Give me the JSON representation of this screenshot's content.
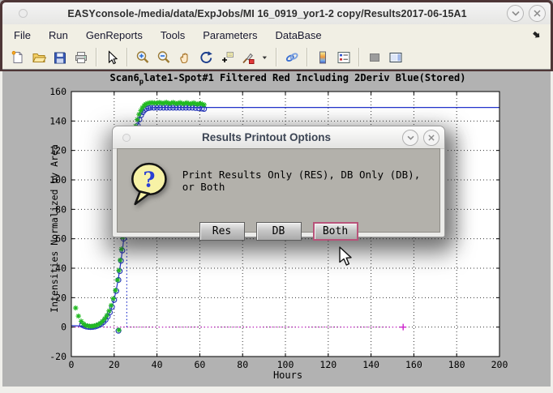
{
  "window": {
    "title": "EASYconsole-/media/data/ExpJobs/MI 16_0919_yor1-2 copy/Results2017-06-15A1",
    "minimize_glyph": "v",
    "close_glyph": "×"
  },
  "menu": {
    "items": [
      "File",
      "Run",
      "GenReports",
      "Tools",
      "Parameters",
      "DataBase"
    ]
  },
  "toolbar": {
    "groups": [
      [
        "new-document-icon",
        "open-folder-icon",
        "save-icon",
        "print-icon"
      ],
      [
        "edit-plot-arrow-icon"
      ],
      [
        "zoom-in-icon",
        "zoom-out-icon",
        "pan-hand-icon",
        "rotate-3d-icon",
        "data-cursor-icon",
        "brush-icon",
        "brush-dropdown-caret-icon"
      ],
      [
        "link-plots-icon"
      ],
      [
        "colorbar-icon",
        "legend-icon"
      ],
      [
        "hide-plot-tools-icon",
        "show-plot-tools-icon"
      ]
    ]
  },
  "dialog": {
    "title": "Results Printout Options",
    "message": "Print Results Only (RES), DB Only (DB), or Both",
    "icon": "question-bubble-icon",
    "buttons": [
      {
        "label": "Res",
        "focused": false
      },
      {
        "label": "DB",
        "focused": false
      },
      {
        "label": "Both",
        "focused": true
      }
    ],
    "focus_ring_color": "#b8537a"
  },
  "chart_data": {
    "type": "line",
    "title": "Scan6_plate1-Spot#1 Filtered Red Including 2Deriv Blue(Stored)",
    "title_parts": {
      "pre": "Scan6",
      "sub": "p",
      "post": "late1-Spot#1 Filtered Red Including 2Deriv Blue(Stored)"
    },
    "xlabel": "Hours",
    "ylabel": "Intensities Normalized by Area",
    "xlim": [
      0,
      200
    ],
    "ylim": [
      -20,
      160
    ],
    "xticks": [
      0,
      20,
      40,
      60,
      80,
      100,
      120,
      140,
      160,
      180,
      200
    ],
    "yticks": [
      -20,
      0,
      20,
      40,
      60,
      80,
      100,
      120,
      140,
      160
    ],
    "grid": true,
    "background": "#ffffff",
    "figure_color": "#b2b2b2",
    "series": [
      {
        "name": "fit-line",
        "type": "line",
        "style": "solid",
        "color": "#2233cc",
        "points": [
          [
            0,
            1
          ],
          [
            4,
            0.8
          ],
          [
            8,
            0.6
          ],
          [
            10,
            0.6
          ],
          [
            12,
            1
          ],
          [
            14,
            2.2
          ],
          [
            15,
            3.2
          ],
          [
            16,
            4.8
          ],
          [
            17,
            7
          ],
          [
            18,
            10
          ],
          [
            19,
            14
          ],
          [
            20,
            19
          ],
          [
            21,
            25.5
          ],
          [
            22,
            33.5
          ],
          [
            23,
            43
          ],
          [
            24,
            54
          ],
          [
            25,
            66
          ],
          [
            26,
            79
          ],
          [
            27,
            93
          ],
          [
            28,
            107
          ],
          [
            29,
            119
          ],
          [
            30,
            129
          ],
          [
            31,
            137
          ],
          [
            32,
            142.5
          ],
          [
            33,
            145.8
          ],
          [
            34,
            147.6
          ],
          [
            35,
            148.5
          ],
          [
            37,
            149
          ],
          [
            40,
            149.2
          ],
          [
            50,
            149.2
          ],
          [
            62,
            149.2
          ],
          [
            100,
            149.2
          ],
          [
            150,
            149.2
          ],
          [
            200,
            149.2
          ]
        ]
      },
      {
        "name": "threshold-vline",
        "type": "line",
        "style": "dotted",
        "color": "#2233cc",
        "points": [
          [
            25.9,
            0
          ],
          [
            25.9,
            62.5
          ]
        ]
      },
      {
        "name": "threshold-vline-cap",
        "type": "line",
        "style": "solid",
        "color": "#2233cc",
        "points": [
          [
            24.8,
            62.5
          ],
          [
            27,
            62.5
          ]
        ]
      },
      {
        "name": "zero-baseline",
        "type": "line",
        "style": "dotted",
        "color": "#cc22cc",
        "points": [
          [
            0,
            0
          ],
          [
            155,
            0
          ]
        ],
        "end_marker": "plus"
      },
      {
        "name": "deriv-circles",
        "type": "scatter",
        "marker": "circle",
        "color": "#2233bb",
        "points": [
          [
            5,
            1.5
          ],
          [
            6,
            0.8
          ],
          [
            7,
            0.3
          ],
          [
            8,
            0.1
          ],
          [
            9,
            0
          ],
          [
            10,
            0.1
          ],
          [
            11,
            0.3
          ],
          [
            12,
            0.8
          ],
          [
            13,
            1.4
          ],
          [
            14,
            2.2
          ],
          [
            15,
            3.4
          ],
          [
            16,
            5
          ],
          [
            17,
            7.2
          ],
          [
            18,
            10
          ],
          [
            19,
            13.7
          ],
          [
            20,
            18.5
          ],
          [
            21,
            24.5
          ],
          [
            22,
            32
          ],
          [
            22.6,
            38
          ],
          [
            23.2,
            45
          ],
          [
            23.8,
            52
          ],
          [
            24.4,
            60
          ],
          [
            22,
            -2.5
          ],
          [
            25,
            68
          ],
          [
            25.6,
            76
          ],
          [
            26.2,
            84
          ],
          [
            26.8,
            92
          ],
          [
            27.4,
            100
          ],
          [
            28,
            108
          ],
          [
            28.6,
            115
          ],
          [
            29.2,
            122
          ],
          [
            29.8,
            128
          ],
          [
            30.4,
            133
          ],
          [
            31,
            137
          ],
          [
            31.8,
            141
          ],
          [
            32.6,
            144
          ],
          [
            33.4,
            146
          ],
          [
            34.2,
            147.5
          ],
          [
            35,
            148.3
          ],
          [
            36,
            148.8
          ],
          [
            37,
            149
          ],
          [
            38.5,
            149
          ],
          [
            40,
            149
          ],
          [
            41.5,
            149
          ],
          [
            43,
            149
          ],
          [
            44.5,
            149
          ],
          [
            46,
            149
          ],
          [
            47.5,
            149
          ],
          [
            49,
            149
          ],
          [
            50.5,
            149
          ],
          [
            52,
            149
          ],
          [
            53.5,
            149
          ],
          [
            55,
            149
          ],
          [
            56.5,
            149
          ],
          [
            58,
            148.8
          ],
          [
            59.5,
            148.6
          ],
          [
            61,
            148.4
          ],
          [
            62,
            148.2
          ]
        ]
      },
      {
        "name": "filtered-red-asterisks",
        "type": "scatter",
        "marker": "asterisk",
        "color": "#22bb22",
        "points": [
          [
            2,
            13
          ],
          [
            3.3,
            7.5
          ],
          [
            4.6,
            4
          ],
          [
            5.6,
            2.3
          ],
          [
            6.6,
            1.3
          ],
          [
            7.6,
            0.8
          ],
          [
            8.6,
            0.6
          ],
          [
            9.6,
            0.6
          ],
          [
            10.6,
            0.8
          ],
          [
            11.6,
            1.2
          ],
          [
            12.6,
            1.8
          ],
          [
            13.6,
            2.7
          ],
          [
            14.6,
            4
          ],
          [
            15.6,
            5.8
          ],
          [
            16.6,
            8
          ],
          [
            17.6,
            11
          ],
          [
            18.6,
            14.7
          ],
          [
            19.6,
            19.3
          ],
          [
            20.6,
            25
          ],
          [
            21.6,
            32
          ],
          [
            22.2,
            38.5
          ],
          [
            22.8,
            45.5
          ],
          [
            23.4,
            53
          ],
          [
            24,
            61
          ],
          [
            22.2,
            -2
          ],
          [
            24.6,
            69
          ],
          [
            25.2,
            77.5
          ],
          [
            25.8,
            86
          ],
          [
            26.4,
            94.5
          ],
          [
            27,
            103
          ],
          [
            27.6,
            111
          ],
          [
            28.2,
            118.5
          ],
          [
            28.8,
            125.5
          ],
          [
            29.4,
            131.5
          ],
          [
            30,
            136.5
          ],
          [
            30.8,
            141
          ],
          [
            31.6,
            144.5
          ],
          [
            32.4,
            147
          ],
          [
            33.2,
            149
          ],
          [
            34,
            150.5
          ],
          [
            34.8,
            151.5
          ],
          [
            35.6,
            152
          ],
          [
            36.4,
            152.3
          ],
          [
            37.2,
            152.4
          ],
          [
            38,
            152.4
          ],
          [
            38.8,
            152.3
          ],
          [
            39.6,
            152.2
          ],
          [
            40.4,
            152.4
          ],
          [
            41.2,
            152.6
          ],
          [
            42,
            152.3
          ],
          [
            42.8,
            152
          ],
          [
            43.6,
            152.4
          ],
          [
            44.4,
            152.7
          ],
          [
            45.2,
            152.2
          ],
          [
            46,
            151.9
          ],
          [
            46.8,
            152.3
          ],
          [
            47.6,
            152.6
          ],
          [
            48.4,
            152.1
          ],
          [
            49.2,
            151.8
          ],
          [
            50,
            152.2
          ],
          [
            50.8,
            152.5
          ],
          [
            51.6,
            152
          ],
          [
            52.4,
            151.7
          ],
          [
            53.2,
            152.1
          ],
          [
            54,
            152.4
          ],
          [
            54.8,
            151.9
          ],
          [
            55.6,
            151.6
          ],
          [
            56.4,
            152
          ],
          [
            57.2,
            152.3
          ],
          [
            58,
            151.8
          ],
          [
            58.8,
            151.4
          ],
          [
            59.6,
            151.7
          ],
          [
            60.4,
            151.9
          ],
          [
            61.2,
            151.4
          ],
          [
            62,
            151
          ]
        ]
      }
    ]
  }
}
